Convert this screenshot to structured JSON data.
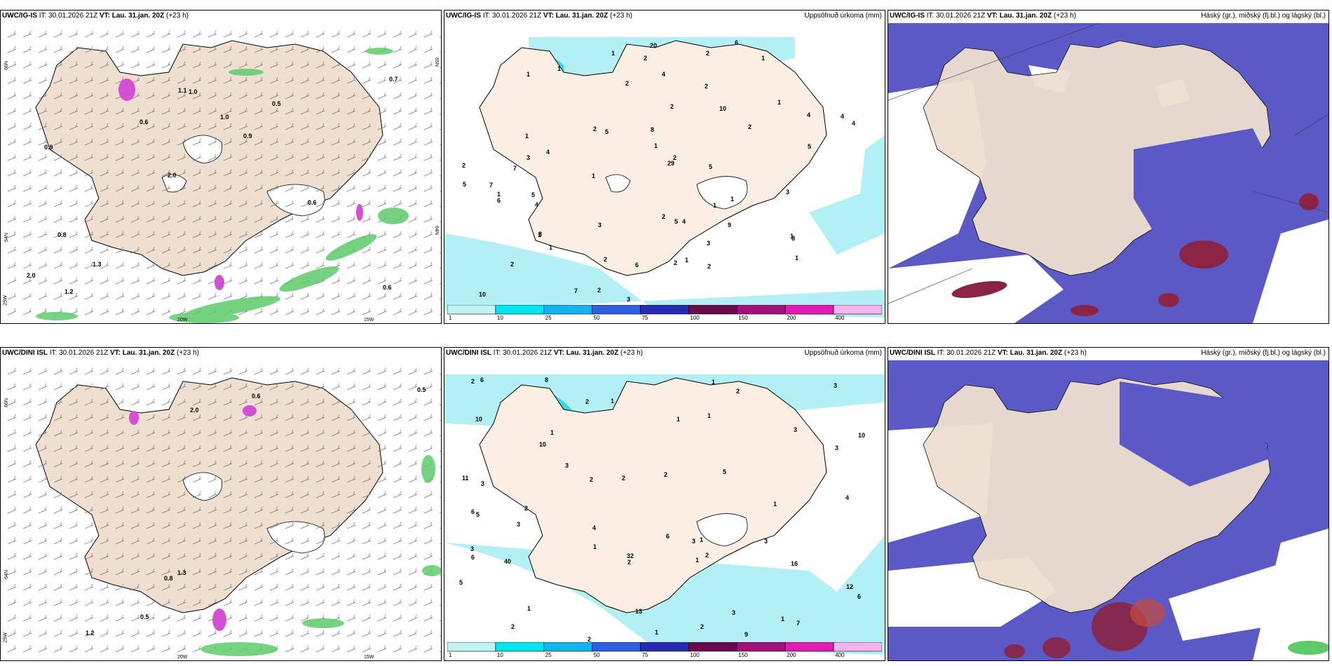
{
  "colors": {
    "land": "#eedfd0",
    "sea": "#ffffff",
    "precip_light": "#b3f0f5",
    "precip_mid": "#33dde8",
    "cloud_mid": "#5b59c6",
    "cloud_high": "#8b2444",
    "fog_green": "#5ecb6b",
    "wind": "#777777"
  },
  "panels": [
    {
      "id": "ig-wind",
      "model": "UWC/IG-IS",
      "it_label": "IT:",
      "it": "30.01.2026 21Z",
      "vt_label": "VT:",
      "vt": "Lau. 31.jan. 20Z",
      "lead": "(+23 h)",
      "right": "",
      "axis": {
        "lat1": "66N",
        "lat2": "64N",
        "lat3": "25W",
        "lon1": "20W",
        "lon2": "15W",
        "lat_r1": "65N",
        "lat_r2": "64N"
      },
      "values": [
        "0.6",
        "0.9",
        "0.7",
        "2.0",
        "0.5",
        "1.2",
        "1.1",
        "1.0",
        "0.8",
        "0.6",
        "2.0",
        "1.3",
        "1.0",
        "0.9",
        "0.6"
      ]
    },
    {
      "id": "ig-precip",
      "model": "UWC/IG-IS",
      "it_label": "IT:",
      "it": "30.01.2026 21Z",
      "vt_label": "VT:",
      "vt": "Lau. 31.jan. 20Z",
      "lead": "(+23 h)",
      "right": "Uppsöfnuð úrkoma (mm)",
      "values": [
        "2",
        "1",
        "1",
        "1",
        "5",
        "4",
        "4",
        "8",
        "4",
        "2",
        "7",
        "20",
        "9",
        "29",
        "3",
        "1",
        "1",
        "2",
        "1",
        "2",
        "2",
        "2",
        "2",
        "2",
        "1",
        "2",
        "1",
        "2",
        "2",
        "1",
        "1",
        "1",
        "1",
        "2",
        "8",
        "6",
        "4",
        "5",
        "10",
        "3",
        "4",
        "4",
        "6",
        "5",
        "5",
        "3",
        "1",
        "2",
        "3",
        "3",
        "5",
        "7",
        "8",
        "5",
        "1",
        "4",
        "2",
        "1",
        "1",
        "7",
        "10",
        "6",
        "2"
      ],
      "legend": [
        "1",
        "10",
        "25",
        "50",
        "75",
        "100",
        "150",
        "200",
        "400"
      ]
    },
    {
      "id": "ig-cloud",
      "model": "UWC/IG-IS",
      "it_label": "IT:",
      "it": "30.01.2026 21Z",
      "vt_label": "VT:",
      "vt": "Lau. 31.jan. 20Z",
      "lead": "(+23 h)",
      "right": "Háský (gr.), miðský (fj.bl.) og lágský (bl.)"
    },
    {
      "id": "dini-wind",
      "model": "UWC/DINI ISL",
      "it_label": "IT:",
      "it": "30.01.2026 21Z",
      "vt_label": "VT:",
      "vt": "Lau. 31.jan. 20Z",
      "lead": "(+23 h)",
      "right": "",
      "axis": {
        "lat1": "66N",
        "lat2": "64N",
        "lat3": "25W",
        "lon1": "20W",
        "lon2": "15W",
        "lat_r1": "",
        "lat_r2": ""
      },
      "values": [
        "0.8",
        "1.3",
        "0.6",
        "1.2",
        "2.0",
        "0.5",
        "0.5"
      ]
    },
    {
      "id": "dini-precip",
      "model": "UWC/DINI ISL",
      "it_label": "IT:",
      "it": "30.01.2026 21Z",
      "vt_label": "VT:",
      "vt": "Lau. 31.jan. 20Z",
      "lead": "(+23 h)",
      "right": "Uppsöfnuð úrkoma (mm)",
      "values": [
        "2",
        "3",
        "3",
        "1",
        "4",
        "2",
        "1",
        "1",
        "2",
        "2",
        "1",
        "11",
        "40",
        "32",
        "16",
        "12",
        "5",
        "6",
        "2",
        "10",
        "3",
        "3",
        "2",
        "2",
        "2",
        "1",
        "3",
        "5",
        "3",
        "6",
        "4",
        "1",
        "1",
        "10",
        "6",
        "8",
        "9",
        "5",
        "7",
        "1",
        "2",
        "1",
        "10",
        "2",
        "2",
        "3",
        "1",
        "2",
        "13",
        "3",
        "1",
        "3",
        "6",
        "6",
        "3",
        "1"
      ],
      "legend": [
        "1",
        "10",
        "25",
        "50",
        "75",
        "100",
        "150",
        "200",
        "400"
      ]
    },
    {
      "id": "dini-cloud",
      "model": "UWC/DINI ISL",
      "it_label": "IT:",
      "it": "30.01.2026 21Z",
      "vt_label": "VT:",
      "vt": "Lau. 31.jan. 20Z",
      "lead": "(+23 h)",
      "right": "Háský (gr.), miðský (fj.bl.) og lágský (bl.)"
    }
  ]
}
